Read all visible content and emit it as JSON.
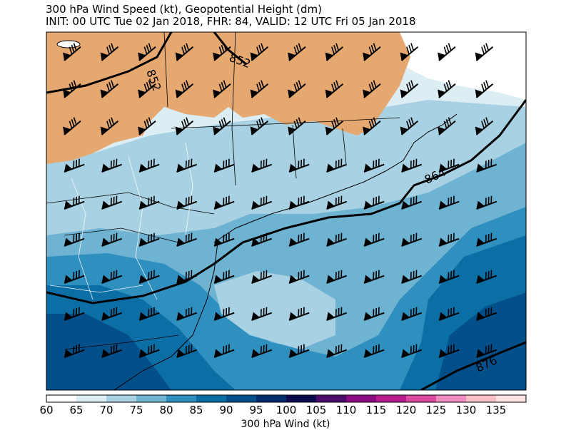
{
  "title_line1": "300 hPa Wind Speed (kt), Geopotential Height (dm)",
  "title_line2": "INIT: 00 UTC Tue 02 Jan 2018, FHR: 84, VALID: 12 UTC Fri 05 Jan 2018",
  "contour_labels": [
    "852",
    "852",
    "864",
    "876"
  ],
  "colorbar": {
    "label": "300 hPa Wind (kt)",
    "ticks": [
      "60",
      "65",
      "70",
      "75",
      "80",
      "85",
      "90",
      "95",
      "100",
      "105",
      "110",
      "115",
      "120",
      "125",
      "130",
      "135"
    ],
    "colors": [
      "#ffffff",
      "#dcedf3",
      "#a8d1e3",
      "#6fb3d2",
      "#2f8fbf",
      "#0b6fa6",
      "#034f8a",
      "#022c6b",
      "#0b0a4e",
      "#4b0b6b",
      "#8a0b82",
      "#b81c8e",
      "#dc4aa0",
      "#f08cbf",
      "#f8bfc8",
      "#fde3e3"
    ]
  },
  "legend_colors": {
    "land": "#e5a871",
    "ocean_light": "#dcedf3",
    "ocean_mid": "#a8d1e3",
    "blue_70": "#6fb3d2",
    "blue_75": "#2f8fbf",
    "blue_80": "#0b6fa6",
    "blue_85": "#034f8a"
  }
}
